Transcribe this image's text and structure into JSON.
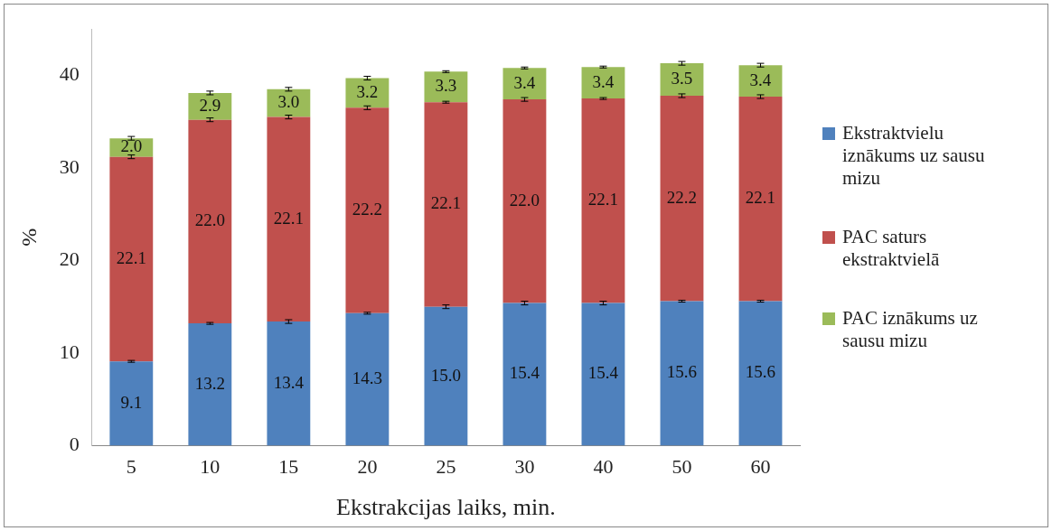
{
  "chart_data": {
    "type": "bar",
    "stacked": true,
    "xlabel": "Ekstrakcijas laiks, min.",
    "ylabel": "%",
    "categories": [
      "5",
      "10",
      "15",
      "20",
      "25",
      "30",
      "40",
      "50",
      "60"
    ],
    "series": [
      {
        "name": "Ekstraktvielu iznākums uz sausu mizu",
        "color": "#4f81bd",
        "values": [
          9.1,
          13.2,
          13.4,
          14.3,
          15.0,
          15.4,
          15.4,
          15.6,
          15.6
        ],
        "value_labels": [
          "9.1",
          "13.2",
          "13.4",
          "14.3",
          "15.0",
          "15.4",
          "15.4",
          "15.6",
          "15.6"
        ],
        "errors": [
          0.1,
          0.1,
          0.2,
          0.1,
          0.2,
          0.2,
          0.2,
          0.1,
          0.1
        ]
      },
      {
        "name": "PAC saturs ekstraktvielā",
        "color": "#c0504d",
        "values": [
          22.1,
          22.0,
          22.1,
          22.2,
          22.1,
          22.0,
          22.1,
          22.2,
          22.1
        ],
        "value_labels": [
          "22.1",
          "22.0",
          "22.1",
          "22.2",
          "22.1",
          "22.0",
          "22.1",
          "22.2",
          "22.1"
        ],
        "errors": [
          0.2,
          0.2,
          0.2,
          0.2,
          0.1,
          0.2,
          0.1,
          0.2,
          0.2
        ]
      },
      {
        "name": "PAC iznākums uz sausu mizu",
        "color": "#9bbb59",
        "values": [
          2.0,
          2.9,
          3.0,
          3.2,
          3.3,
          3.4,
          3.4,
          3.5,
          3.4
        ],
        "value_labels": [
          "2.0",
          "2.9",
          "3.0",
          "3.2",
          "3.3",
          "3.4",
          "3.4",
          "3.5",
          "3.4"
        ],
        "errors": [
          0.2,
          0.2,
          0.2,
          0.2,
          0.1,
          0.1,
          0.1,
          0.2,
          0.2
        ]
      }
    ],
    "ylim": [
      0,
      45
    ],
    "yticks": [
      0,
      10,
      20,
      30,
      40
    ],
    "grid": false,
    "legend": "right"
  }
}
